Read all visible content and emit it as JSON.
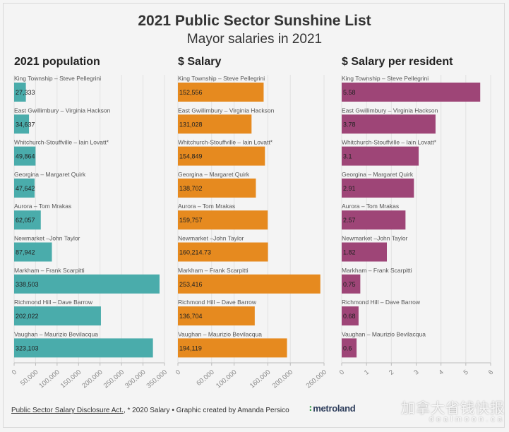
{
  "title": "2021 Public Sector Sunshine List",
  "subtitle": "Mayor salaries in 2021",
  "chart_data": [
    {
      "type": "bar",
      "orientation": "horizontal",
      "title": "2021 population",
      "color": "#4aacab",
      "categories": [
        "King Township – Steve Pellegrini",
        "East Gwillimbury – Virginia Hackson",
        "Whitchurch-Stouffville – Iain Lovatt*",
        "Georgina – Margaret Quirk",
        "Aurora – Tom Mrakas",
        "Newmarket –John Taylor",
        "Markham – Frank Scarpitti",
        "Richmond Hill – Dave Barrow",
        "Vaughan – Maurizio Bevilacqua"
      ],
      "values": [
        27333,
        34637,
        49864,
        47642,
        62057,
        87942,
        338503,
        202022,
        323103
      ],
      "value_labels": [
        "27,333",
        "34,637",
        "49,864",
        "47,642",
        "62,057",
        "87,942",
        "338,503",
        "202,022",
        "323,103"
      ],
      "xlim": [
        0,
        350000
      ],
      "ticks": [
        0,
        50000,
        100000,
        150000,
        200000,
        250000,
        300000,
        350000
      ],
      "tick_labels": [
        "0",
        "50,000",
        "100,000",
        "150,000",
        "200,000",
        "250,000",
        "300,000",
        "350,000"
      ]
    },
    {
      "type": "bar",
      "orientation": "horizontal",
      "title": "$ Salary",
      "color": "#e68a1f",
      "categories": [
        "King Township – Steve Pellegrini",
        "East Gwillimbury – Virginia Hackson",
        "Whitchurch-Stouffville – Iain Lovatt*",
        "Georgina – Margaret Quirk",
        "Aurora – Tom Mrakas",
        "Newmarket –John Taylor",
        "Markham – Frank Scarpitti",
        "Richmond Hill – Dave Barrow",
        "Vaughan – Maurizio Bevilacqua"
      ],
      "values": [
        152556,
        131028,
        154849,
        138702,
        159757,
        160214.73,
        253416,
        136704,
        194119
      ],
      "value_labels": [
        "152,556",
        "131,028",
        "154,849",
        "138,702",
        "159,757",
        "160,214.73",
        "253,416",
        "136,704",
        "194,119"
      ],
      "xlim": [
        0,
        260000
      ],
      "ticks": [
        0,
        60000,
        100000,
        160000,
        200000,
        260000
      ],
      "tick_labels": [
        "0",
        "60,000",
        "100,000",
        "160,000",
        "200,000",
        "260,000"
      ]
    },
    {
      "type": "bar",
      "orientation": "horizontal",
      "title": "$ Salary per resident",
      "color": "#9e4577",
      "categories": [
        "King Township – Steve Pellegrini",
        "East Gwillimbury – Virginia Hackson",
        "Whitchurch-Stouffville – Iain Lovatt*",
        "Georgina – Margaret Quirk",
        "Aurora – Tom Mrakas",
        "Newmarket –John Taylor",
        "Markham – Frank Scarpitti",
        "Richmond Hill – Dave Barrow",
        "Vaughan – Maurizio Bevilacqua"
      ],
      "values": [
        5.58,
        3.78,
        3.1,
        2.91,
        2.57,
        1.82,
        0.75,
        0.68,
        0.6
      ],
      "value_labels": [
        "5.58",
        "3.78",
        "3.1",
        "2.91",
        "2.57",
        "1.82",
        "0.75",
        "0.68",
        "0.6"
      ],
      "xlim": [
        0,
        6
      ],
      "ticks": [
        0,
        1,
        2,
        3,
        4,
        5,
        6
      ],
      "tick_labels": [
        "0",
        "1",
        "2",
        "3",
        "4",
        "5",
        "6"
      ]
    }
  ],
  "footer": {
    "act_link": "Public Sector Salary Disclosure Act.",
    "rest": ", * 2020 Salary • Graphic created by Amanda Persico"
  },
  "logo": "metroland",
  "watermark": {
    "line1": "加拿大省钱快报",
    "line2": "dealmoon.ca"
  }
}
